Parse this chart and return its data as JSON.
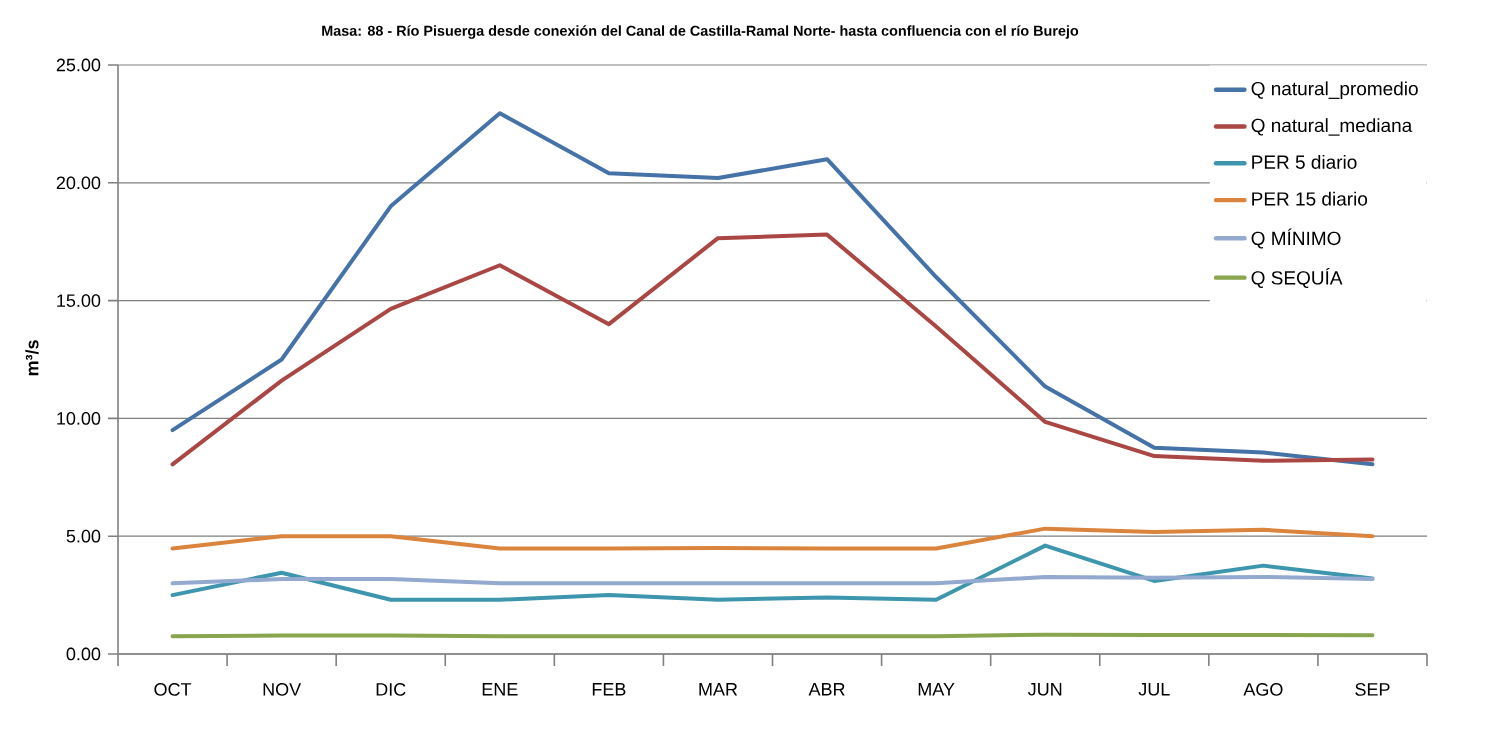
{
  "chart_data": {
    "type": "line",
    "title": "Masa: 88 - Río Pisuerga desde conexión del Canal de Castilla-Ramal Norte- hasta confluencia con el río Burejo",
    "ylabel": "m³/s",
    "categories": [
      "OCT",
      "NOV",
      "DIC",
      "ENE",
      "FEB",
      "MAR",
      "ABR",
      "MAY",
      "JUN",
      "JUL",
      "AGO",
      "SEP"
    ],
    "series": [
      {
        "name": "Q natural_promedio",
        "color": "#4572a7",
        "values": [
          9.5,
          12.5,
          19.0,
          22.95,
          20.4,
          20.2,
          21.0,
          16.0,
          11.35,
          8.75,
          8.55,
          8.05
        ]
      },
      {
        "name": "Q natural_mediana",
        "color": "#aa4643",
        "values": [
          8.05,
          11.6,
          14.65,
          16.5,
          14.0,
          17.65,
          17.8,
          13.9,
          9.85,
          8.4,
          8.2,
          8.25
        ]
      },
      {
        "name": "PER 5 diario",
        "color": "#3d96ae",
        "values": [
          2.5,
          3.45,
          2.3,
          2.3,
          2.5,
          2.3,
          2.4,
          2.3,
          4.6,
          3.1,
          3.75,
          3.2
        ]
      },
      {
        "name": "PER 15 diario",
        "color": "#db843d",
        "values": [
          4.48,
          5.0,
          5.0,
          4.48,
          4.48,
          4.5,
          4.48,
          4.48,
          5.32,
          5.18,
          5.27,
          5.0
        ]
      },
      {
        "name": "Q MÍNIMO",
        "color": "#93a9cf",
        "values": [
          3.0,
          3.18,
          3.18,
          3.0,
          3.0,
          3.0,
          3.0,
          3.0,
          3.27,
          3.24,
          3.27,
          3.18
        ]
      },
      {
        "name": "Q SEQUÍA",
        "color": "#89a54e",
        "values": [
          0.75,
          0.78,
          0.78,
          0.75,
          0.75,
          0.75,
          0.75,
          0.75,
          0.82,
          0.81,
          0.81,
          0.8
        ]
      }
    ],
    "ylim": [
      0,
      25
    ],
    "yticks": [
      {
        "value": 0,
        "label": "0.00"
      },
      {
        "value": 5,
        "label": "5.00"
      },
      {
        "value": 10,
        "label": "10.00"
      },
      {
        "value": 15,
        "label": "15.00"
      },
      {
        "value": 20,
        "label": "20.00"
      },
      {
        "value": 25,
        "label": "25.00"
      }
    ],
    "grid": "y",
    "legend": "top right",
    "marker": "none",
    "line_style": "solid"
  }
}
